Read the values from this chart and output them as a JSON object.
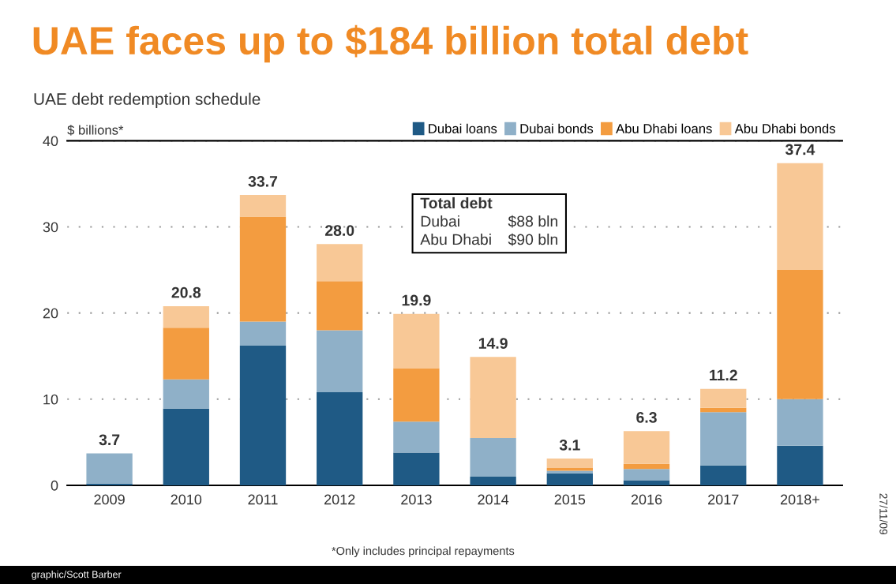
{
  "chart_data": {
    "type": "bar",
    "stacked": true,
    "title": "UAE faces up to $184 billion total debt",
    "subtitle": "UAE debt redemption schedule",
    "ylabel": "$ billions*",
    "categories": [
      "2009",
      "2010",
      "2011",
      "2012",
      "2013",
      "2014",
      "2015",
      "2016",
      "2017",
      "2018+"
    ],
    "series": [
      {
        "name": "Dubai loans",
        "color": "#1f5a85",
        "values": [
          0.2,
          8.9,
          16.2,
          10.8,
          3.8,
          1.0,
          1.4,
          0.6,
          2.3,
          4.6
        ]
      },
      {
        "name": "Dubai bonds",
        "color": "#8fb0c8",
        "values": [
          3.5,
          3.4,
          2.8,
          7.2,
          3.6,
          4.5,
          0.3,
          1.3,
          6.2,
          5.4
        ]
      },
      {
        "name": "Abu Dhabi loans",
        "color": "#f39c40",
        "values": [
          0,
          6.0,
          12.2,
          5.7,
          6.2,
          0,
          0.3,
          0.6,
          0.5,
          15.0
        ]
      },
      {
        "name": "Abu Dhabi bonds",
        "color": "#f8c896",
        "values": [
          0,
          2.5,
          2.5,
          4.3,
          6.3,
          9.4,
          1.1,
          3.8,
          2.2,
          12.4
        ]
      }
    ],
    "totals": [
      "3.7",
      "20.8",
      "33.7",
      "28.0",
      "19.9",
      "14.9",
      "3.1",
      "6.3",
      "11.2",
      "37.4"
    ],
    "ylim": [
      0,
      40
    ],
    "yticks": [
      0,
      10,
      20,
      30,
      40
    ],
    "grid": "y",
    "legend": "top right",
    "annotations": [
      "Total debt",
      "Dubai",
      "$88 bln",
      "Abu Dhabi",
      "$90 bln",
      "*Only includes principal repayments",
      "27/11/09",
      "graphic/Scott Barber"
    ]
  }
}
